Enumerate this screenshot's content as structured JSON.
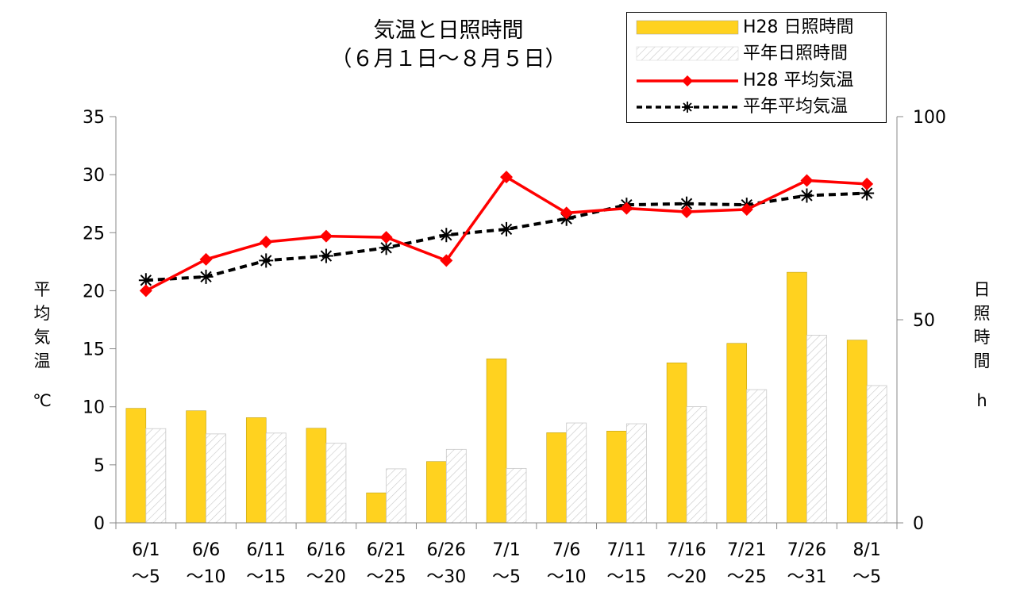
{
  "chart_data": {
    "type": "bar",
    "title": [
      "気温と日照時間",
      "（６月１日～８月５日）"
    ],
    "categories": [
      [
        "6/1",
        "～5"
      ],
      [
        "6/6",
        "～10"
      ],
      [
        "6/11",
        "～15"
      ],
      [
        "6/16",
        "～20"
      ],
      [
        "6/21",
        "～25"
      ],
      [
        "6/26",
        "～30"
      ],
      [
        "7/1",
        "～5"
      ],
      [
        "7/6",
        "～10"
      ],
      [
        "7/11",
        "～15"
      ],
      [
        "7/16",
        "～20"
      ],
      [
        "7/21",
        "～25"
      ],
      [
        "7/26",
        "～31"
      ],
      [
        "8/1",
        "～5"
      ]
    ],
    "y_left": {
      "label": [
        "平",
        "均",
        "気",
        "温",
        "℃"
      ],
      "range": [
        0,
        35
      ],
      "ticks": [
        "0",
        "5",
        "10",
        "15",
        "20",
        "25",
        "30",
        "35"
      ]
    },
    "y_right": {
      "label": [
        "日",
        "照",
        "時",
        "間",
        "h"
      ],
      "range": [
        0,
        100
      ],
      "ticks": [
        "0",
        "50",
        "100"
      ]
    },
    "series": [
      {
        "name": "H28 日照時間",
        "type": "bar",
        "axis": "right",
        "color": "#FFD21F",
        "values": [
          28.2,
          27.6,
          25.9,
          23.3,
          7.4,
          15.1,
          40.4,
          22.2,
          22.6,
          39.4,
          44.2,
          61.7,
          45.0
        ]
      },
      {
        "name": "平年日照時間",
        "type": "bar",
        "axis": "right",
        "color": "#ffffff",
        "pattern": "diagonal-hatch",
        "values": [
          23.2,
          21.9,
          22.1,
          19.6,
          13.3,
          18.1,
          13.4,
          24.6,
          24.4,
          28.6,
          32.8,
          46.2,
          33.8
        ]
      },
      {
        "name": "H28 平均気温",
        "type": "line",
        "axis": "left",
        "color": "#FF0000",
        "marker": "diamond",
        "values": [
          20.0,
          22.7,
          24.2,
          24.7,
          24.6,
          22.6,
          29.8,
          26.7,
          27.1,
          26.8,
          27.0,
          29.5,
          29.2
        ]
      },
      {
        "name": "平年平均気温",
        "type": "line",
        "axis": "left",
        "color": "#000000",
        "marker": "asterisk",
        "dash": true,
        "values": [
          20.9,
          21.2,
          22.6,
          23.0,
          23.7,
          24.8,
          25.3,
          26.2,
          27.4,
          27.5,
          27.4,
          28.2,
          28.4
        ]
      }
    ],
    "legend_position": "top-right",
    "grid": false
  }
}
